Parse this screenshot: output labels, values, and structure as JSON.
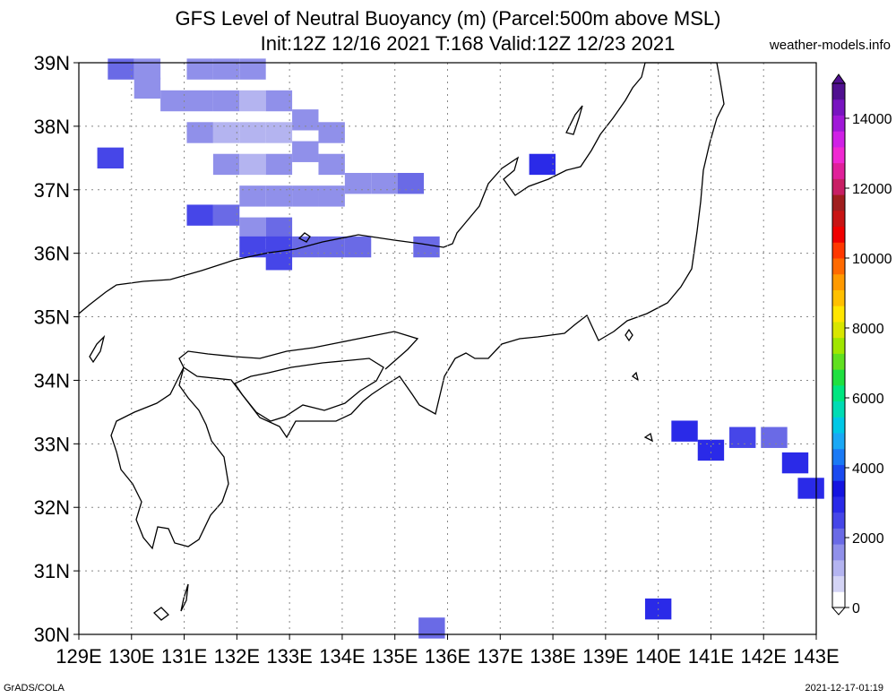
{
  "title_line1": "GFS Level of Neutral Buoyancy (m) (Parcel:500m above MSL)",
  "title_line2": "Init:12Z 12/16 2021 T:168 Valid:12Z 12/23 2021",
  "site": "weather-models.info",
  "credit_left": "GrADS/COLA",
  "credit_right": "2021-12-17-01:19",
  "lat_labels": [
    "39N",
    "38N",
    "37N",
    "36N",
    "35N",
    "34N",
    "33N",
    "32N",
    "31N",
    "30N"
  ],
  "lon_labels": [
    "129E",
    "130E",
    "131E",
    "132E",
    "133E",
    "134E",
    "135E",
    "136E",
    "137E",
    "138E",
    "139E",
    "140E",
    "141E",
    "142E",
    "143E"
  ],
  "colorbar": {
    "labels": [
      "0",
      "2000",
      "4000",
      "6000",
      "8000",
      "10000",
      "12000",
      "14000"
    ],
    "colors": [
      "#ffffff",
      "#d4d4f5",
      "#b4b4f0",
      "#9090ea",
      "#6a6ae6",
      "#4646e8",
      "#2a2ae8",
      "#1414e0",
      "#1a4af0",
      "#1a7af5",
      "#1aa8f5",
      "#00c8e6",
      "#00dcb4",
      "#00e680",
      "#20e040",
      "#60e020",
      "#a0e600",
      "#d8e600",
      "#ffe600",
      "#ffc000",
      "#ff9a00",
      "#ff6a00",
      "#ff3800",
      "#f00000",
      "#c81414",
      "#a01e1e",
      "#c81e64",
      "#e0209a",
      "#f028d2",
      "#d020e6",
      "#a018d8",
      "#7814c0",
      "#501090"
    ],
    "top_color": "#501090"
  },
  "chart_data": {
    "type": "heatmap",
    "variable": "Level of Neutral Buoyancy (m)",
    "xlim": [
      129,
      143
    ],
    "ylim": [
      30,
      39
    ],
    "cells": [
      {
        "lon": 129.8,
        "lat": 38.9,
        "value": 1800
      },
      {
        "lon": 130.3,
        "lat": 38.9,
        "value": 1600
      },
      {
        "lon": 130.3,
        "lat": 38.6,
        "value": 1600
      },
      {
        "lon": 130.8,
        "lat": 38.4,
        "value": 1500
      },
      {
        "lon": 131.3,
        "lat": 38.9,
        "value": 1400
      },
      {
        "lon": 131.8,
        "lat": 38.9,
        "value": 1300
      },
      {
        "lon": 132.3,
        "lat": 38.9,
        "value": 1400
      },
      {
        "lon": 131.3,
        "lat": 38.4,
        "value": 1400
      },
      {
        "lon": 131.8,
        "lat": 38.4,
        "value": 1200
      },
      {
        "lon": 132.3,
        "lat": 38.4,
        "value": 1100
      },
      {
        "lon": 132.8,
        "lat": 38.4,
        "value": 1200
      },
      {
        "lon": 133.3,
        "lat": 38.1,
        "value": 1300
      },
      {
        "lon": 133.8,
        "lat": 37.9,
        "value": 1300
      },
      {
        "lon": 131.3,
        "lat": 37.9,
        "value": 1300
      },
      {
        "lon": 131.8,
        "lat": 37.9,
        "value": 1100
      },
      {
        "lon": 132.3,
        "lat": 37.9,
        "value": 1000
      },
      {
        "lon": 132.8,
        "lat": 37.9,
        "value": 1000
      },
      {
        "lon": 133.3,
        "lat": 37.6,
        "value": 1200
      },
      {
        "lon": 133.8,
        "lat": 37.4,
        "value": 1500
      },
      {
        "lon": 134.3,
        "lat": 37.1,
        "value": 1600
      },
      {
        "lon": 134.8,
        "lat": 37.1,
        "value": 1600
      },
      {
        "lon": 135.3,
        "lat": 37.1,
        "value": 1700
      },
      {
        "lon": 131.8,
        "lat": 37.4,
        "value": 1200
      },
      {
        "lon": 132.3,
        "lat": 37.4,
        "value": 1100
      },
      {
        "lon": 132.8,
        "lat": 37.4,
        "value": 1200
      },
      {
        "lon": 132.3,
        "lat": 36.9,
        "value": 1300
      },
      {
        "lon": 132.8,
        "lat": 36.9,
        "value": 1500
      },
      {
        "lon": 133.3,
        "lat": 36.9,
        "value": 1500
      },
      {
        "lon": 133.8,
        "lat": 36.9,
        "value": 1600
      },
      {
        "lon": 131.3,
        "lat": 36.6,
        "value": 2200
      },
      {
        "lon": 131.8,
        "lat": 36.6,
        "value": 1800
      },
      {
        "lon": 132.3,
        "lat": 36.4,
        "value": 1600
      },
      {
        "lon": 132.8,
        "lat": 36.4,
        "value": 1700
      },
      {
        "lon": 132.3,
        "lat": 36.1,
        "value": 2300
      },
      {
        "lon": 132.8,
        "lat": 36.1,
        "value": 2200
      },
      {
        "lon": 133.3,
        "lat": 36.1,
        "value": 1900
      },
      {
        "lon": 133.8,
        "lat": 36.1,
        "value": 1800
      },
      {
        "lon": 134.3,
        "lat": 36.1,
        "value": 1800
      },
      {
        "lon": 132.8,
        "lat": 35.9,
        "value": 2400
      },
      {
        "lon": 135.6,
        "lat": 36.1,
        "value": 1800
      },
      {
        "lon": 129.6,
        "lat": 37.5,
        "value": 2500
      },
      {
        "lon": 137.8,
        "lat": 37.4,
        "value": 2700
      },
      {
        "lon": 140.5,
        "lat": 33.2,
        "value": 2600
      },
      {
        "lon": 141.0,
        "lat": 32.9,
        "value": 2600
      },
      {
        "lon": 141.6,
        "lat": 33.1,
        "value": 2200
      },
      {
        "lon": 142.2,
        "lat": 33.1,
        "value": 2000
      },
      {
        "lon": 142.6,
        "lat": 32.7,
        "value": 2600
      },
      {
        "lon": 142.9,
        "lat": 32.3,
        "value": 2700
      },
      {
        "lon": 140.0,
        "lat": 30.4,
        "value": 2600
      },
      {
        "lon": 135.7,
        "lat": 30.1,
        "value": 2000
      }
    ]
  }
}
